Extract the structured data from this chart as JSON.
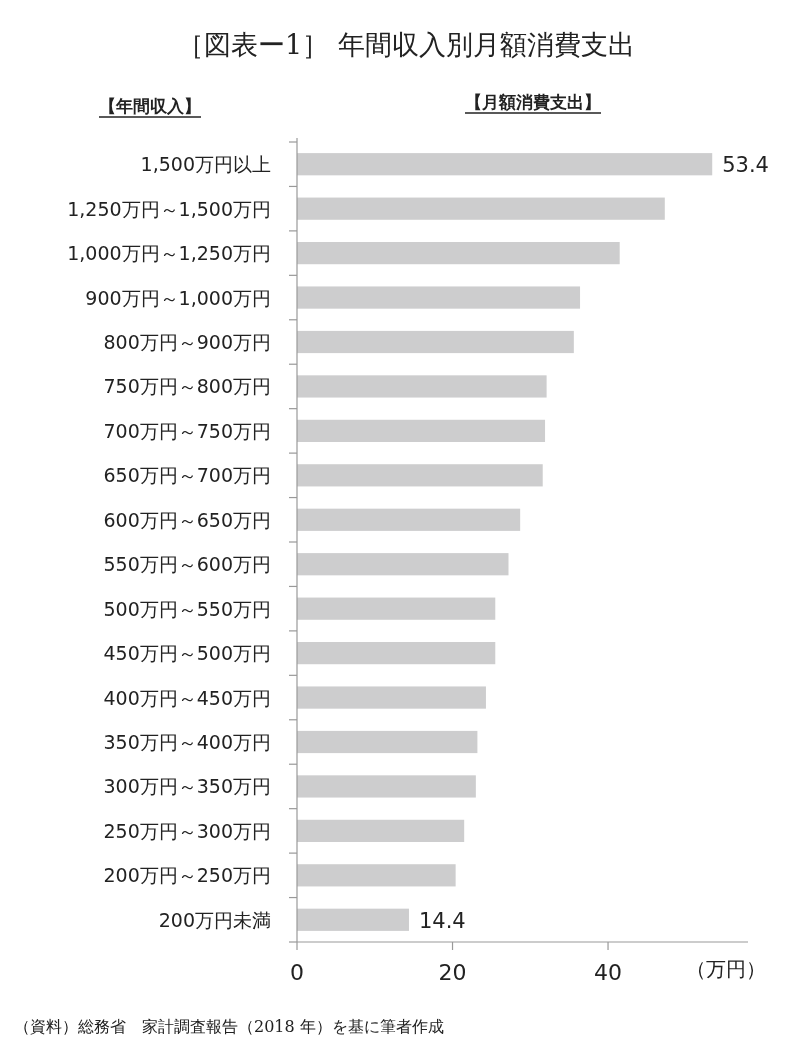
{
  "chart_data": {
    "type": "bar",
    "orientation": "horizontal",
    "title": "［図表ー1］ 年間収入別月額消費支出",
    "ylabel": "【年間収入】",
    "xlabel": "【月額消費支出】",
    "categories": [
      "1,500万円以上",
      "1,250万円～1,500万円",
      "1,000万円～1,250万円",
      "900万円～1,000万円",
      "800万円～900万円",
      "750万円～800万円",
      "700万円～750万円",
      "650万円～700万円",
      "600万円～650万円",
      "550万円～600万円",
      "500万円～550万円",
      "450万円～500万円",
      "400万円～450万円",
      "350万円～400万円",
      "300万円～350万円",
      "250万円～300万円",
      "200万円～250万円",
      "200万円未満"
    ],
    "values": [
      53.4,
      47.3,
      41.5,
      36.4,
      35.6,
      32.1,
      31.9,
      31.6,
      28.7,
      27.2,
      25.5,
      25.5,
      24.3,
      23.2,
      23.0,
      21.5,
      20.4,
      14.4
    ],
    "value_labels": [
      "53.4",
      null,
      null,
      null,
      null,
      null,
      null,
      null,
      null,
      null,
      null,
      null,
      null,
      null,
      null,
      null,
      null,
      "14.4"
    ],
    "color": "#cdcdce",
    "xlim": [
      0,
      58
    ],
    "xticks": [
      0,
      20,
      40
    ],
    "annotations": [
      "（万円）",
      "（資料）総務省　家計調査報告（2018 年）を基に筆者作成"
    ]
  }
}
